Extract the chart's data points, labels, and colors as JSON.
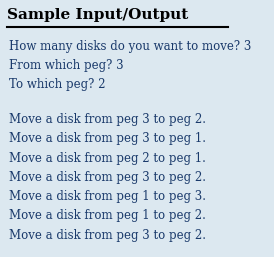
{
  "title": "Sample Input/Output",
  "background_color": "#dce8f0",
  "title_color": "#000000",
  "text_color": "#1a3a6b",
  "title_fontsize": 11,
  "body_fontsize": 8.5,
  "input_lines": [
    "How many disks do you want to move? 3",
    "From which peg? 3",
    "To which peg? 2"
  ],
  "output_lines": [
    "Move a disk from peg 3 to peg 2.",
    "Move a disk from peg 3 to peg 1.",
    "Move a disk from peg 2 to peg 1.",
    "Move a disk from peg 3 to peg 2.",
    "Move a disk from peg 1 to peg 3.",
    "Move a disk from peg 1 to peg 2.",
    "Move a disk from peg 3 to peg 2."
  ]
}
